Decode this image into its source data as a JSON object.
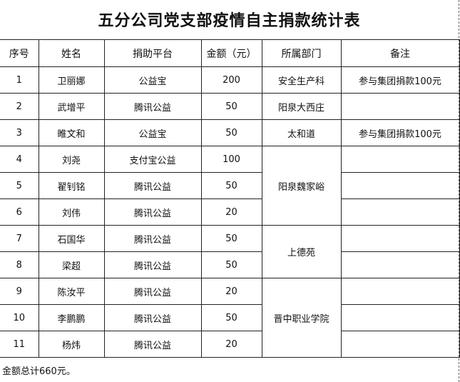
{
  "title": "五分公司党支部疫情自主捐款统计表",
  "headers": [
    "序号",
    "姓名",
    "捐助平台",
    "金额（元）",
    "所属部门",
    "备注"
  ],
  "rows": [
    {
      "no": "1",
      "name": "卫丽娜",
      "platform": "公益宝",
      "amount": "200",
      "dept": "安全生产科",
      "note": "参与集团捐款100元"
    },
    {
      "no": "2",
      "name": "武增平",
      "platform": "腾讯公益",
      "amount": "50",
      "dept": "阳泉大西庄",
      "note": ""
    },
    {
      "no": "3",
      "name": "睢文和",
      "platform": "公益宝",
      "amount": "50",
      "dept": "太和道",
      "note": "参与集团捐款100元"
    },
    {
      "no": "4",
      "name": "刘尧",
      "platform": "支付宝公益",
      "amount": "100",
      "dept": "阳泉魏家峪",
      "note": ""
    },
    {
      "no": "5",
      "name": "翟钊铭",
      "platform": "腾讯公益",
      "amount": "50",
      "dept": "",
      "note": ""
    },
    {
      "no": "6",
      "name": "刘伟",
      "platform": "腾讯公益",
      "amount": "20",
      "dept": "",
      "note": ""
    },
    {
      "no": "7",
      "name": "石国华",
      "platform": "腾讯公益",
      "amount": "50",
      "dept": "上德苑",
      "note": ""
    },
    {
      "no": "8",
      "name": "梁超",
      "platform": "腾讯公益",
      "amount": "50",
      "dept": "",
      "note": ""
    },
    {
      "no": "9",
      "name": "陈汝平",
      "platform": "腾讯公益",
      "amount": "20",
      "dept": "晋中职业学院",
      "note": ""
    },
    {
      "no": "10",
      "name": "李鹏鹏",
      "platform": "腾讯公益",
      "amount": "50",
      "dept": "",
      "note": ""
    },
    {
      "no": "11",
      "name": "杨炜",
      "platform": "腾讯公益",
      "amount": "20",
      "dept": "",
      "note": ""
    }
  ],
  "footer": "金额总计660元。"
}
